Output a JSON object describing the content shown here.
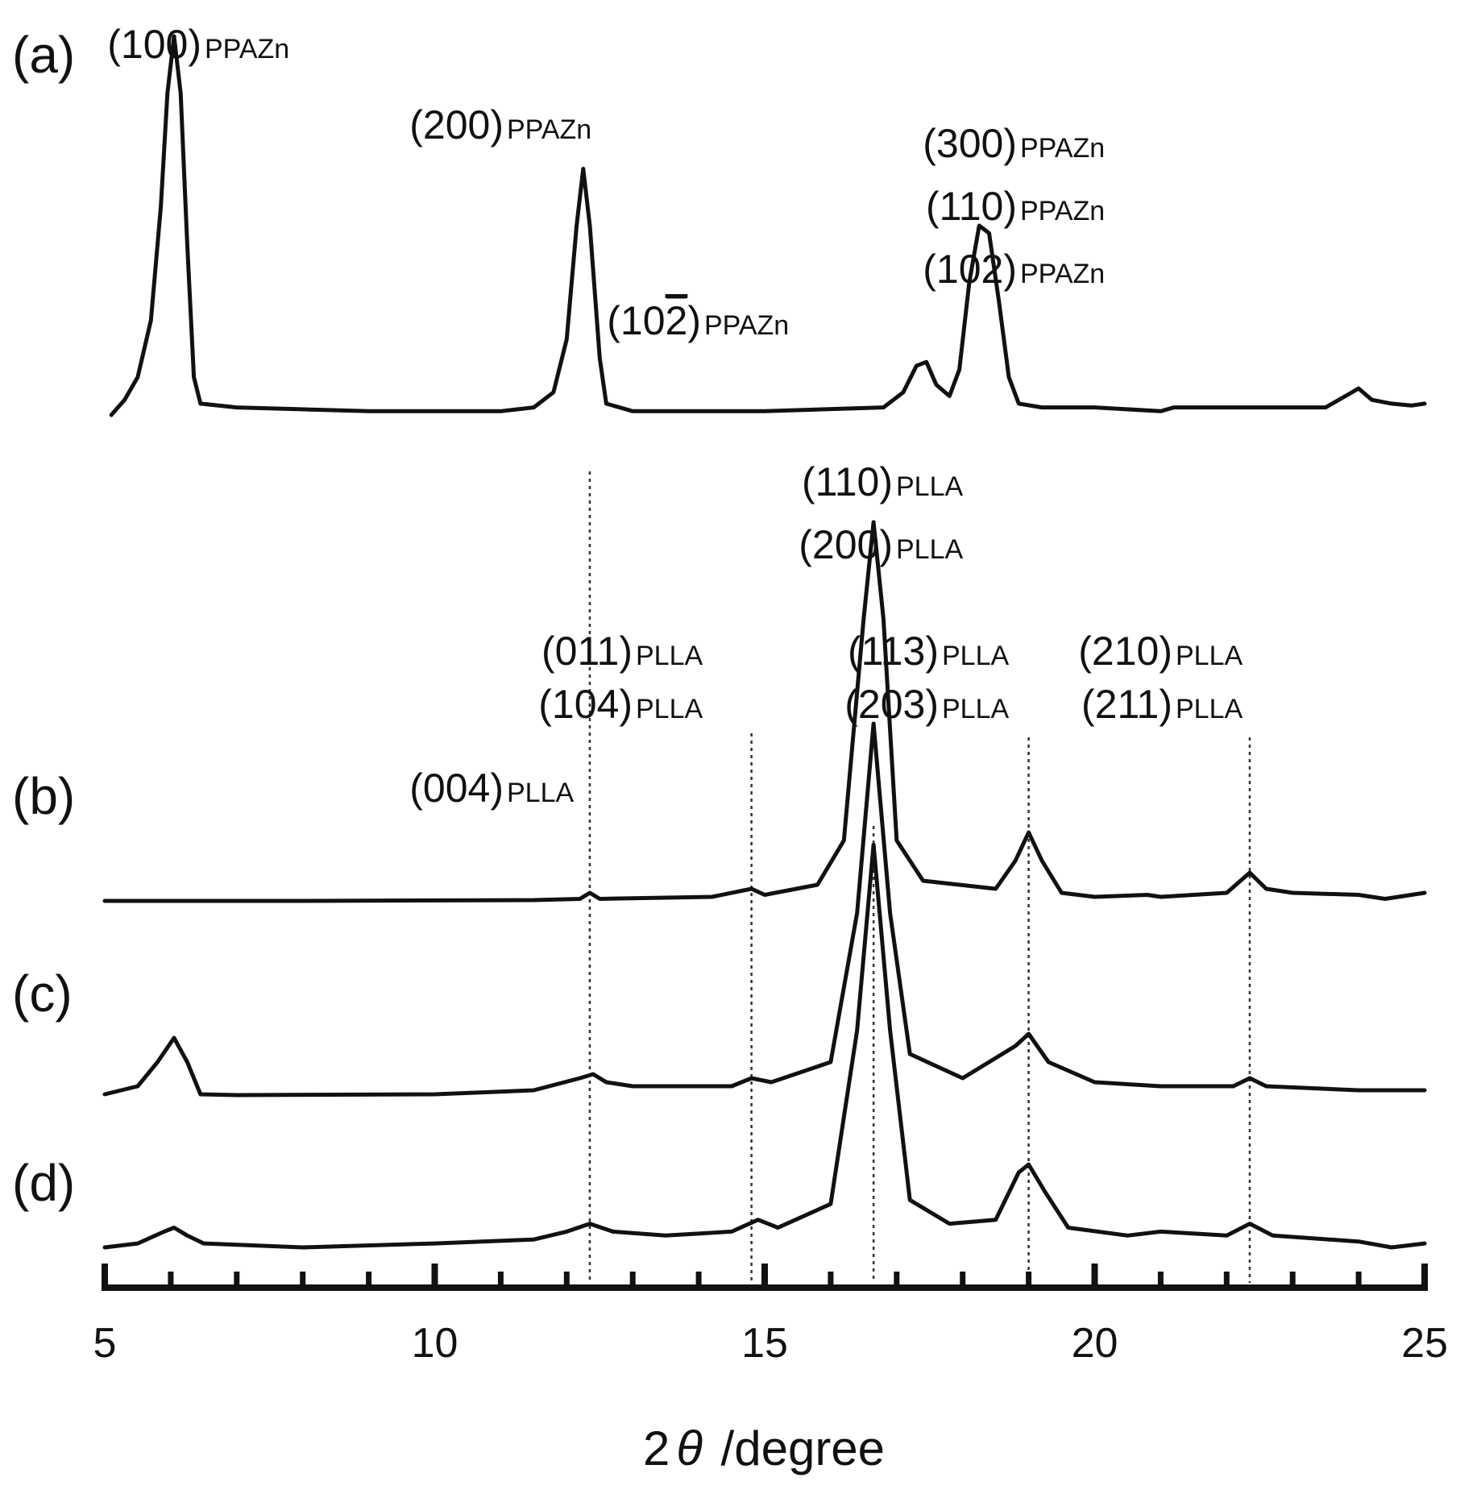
{
  "chart_data": {
    "type": "line",
    "xlabel_prefix": "2",
    "xlabel_symbol": "θ",
    "xlabel_suffix": " /degree",
    "xlim": [
      5,
      25
    ],
    "xticks": [
      5,
      10,
      15,
      20,
      25
    ],
    "minor_tick_step": 1,
    "grid": false,
    "line_color": "#111111",
    "guide_color": "#333333",
    "series": [
      {
        "name": "(a)",
        "points": [
          [
            5.1,
            0.0
          ],
          [
            5.3,
            0.04
          ],
          [
            5.5,
            0.1
          ],
          [
            5.7,
            0.25
          ],
          [
            5.85,
            0.55
          ],
          [
            5.95,
            0.85
          ],
          [
            6.05,
            1.0
          ],
          [
            6.15,
            0.85
          ],
          [
            6.25,
            0.45
          ],
          [
            6.35,
            0.1
          ],
          [
            6.45,
            0.03
          ],
          [
            7,
            0.02
          ],
          [
            9,
            0.01
          ],
          [
            11,
            0.01
          ],
          [
            11.5,
            0.02
          ],
          [
            11.8,
            0.06
          ],
          [
            12.0,
            0.2
          ],
          [
            12.15,
            0.5
          ],
          [
            12.25,
            0.65
          ],
          [
            12.35,
            0.5
          ],
          [
            12.5,
            0.15
          ],
          [
            12.6,
            0.03
          ],
          [
            13,
            0.01
          ],
          [
            15,
            0.01
          ],
          [
            16.8,
            0.02
          ],
          [
            17.1,
            0.06
          ],
          [
            17.3,
            0.13
          ],
          [
            17.45,
            0.14
          ],
          [
            17.6,
            0.08
          ],
          [
            17.8,
            0.05
          ],
          [
            17.95,
            0.12
          ],
          [
            18.1,
            0.35
          ],
          [
            18.25,
            0.5
          ],
          [
            18.4,
            0.48
          ],
          [
            18.55,
            0.3
          ],
          [
            18.7,
            0.1
          ],
          [
            18.85,
            0.03
          ],
          [
            19.2,
            0.02
          ],
          [
            20,
            0.02
          ],
          [
            21,
            0.01
          ],
          [
            21.2,
            0.02
          ],
          [
            22,
            0.02
          ],
          [
            23.5,
            0.02
          ],
          [
            23.8,
            0.05
          ],
          [
            24.0,
            0.07
          ],
          [
            24.2,
            0.04
          ],
          [
            24.5,
            0.03
          ],
          [
            24.8,
            0.025
          ],
          [
            25,
            0.03
          ]
        ]
      },
      {
        "name": "(b)",
        "points": [
          [
            5.0,
            0.0
          ],
          [
            8,
            0.0
          ],
          [
            11.5,
            0.002
          ],
          [
            12.2,
            0.005
          ],
          [
            12.35,
            0.02
          ],
          [
            12.5,
            0.005
          ],
          [
            14.2,
            0.01
          ],
          [
            14.8,
            0.03
          ],
          [
            15.0,
            0.015
          ],
          [
            15.8,
            0.04
          ],
          [
            16.2,
            0.15
          ],
          [
            16.5,
            0.7
          ],
          [
            16.65,
            0.94
          ],
          [
            16.8,
            0.7
          ],
          [
            17.0,
            0.15
          ],
          [
            17.4,
            0.05
          ],
          [
            18.5,
            0.03
          ],
          [
            18.8,
            0.1
          ],
          [
            19.0,
            0.17
          ],
          [
            19.2,
            0.1
          ],
          [
            19.5,
            0.02
          ],
          [
            20,
            0.01
          ],
          [
            20.8,
            0.015
          ],
          [
            21,
            0.01
          ],
          [
            22.0,
            0.02
          ],
          [
            22.35,
            0.07
          ],
          [
            22.6,
            0.03
          ],
          [
            23,
            0.02
          ],
          [
            24.0,
            0.015
          ],
          [
            24.4,
            0.005
          ],
          [
            25,
            0.02
          ]
        ]
      },
      {
        "name": "(c)",
        "points": [
          [
            5.0,
            0.0
          ],
          [
            5.5,
            0.02
          ],
          [
            5.8,
            0.08
          ],
          [
            6.05,
            0.14
          ],
          [
            6.25,
            0.08
          ],
          [
            6.45,
            0.0
          ],
          [
            7,
            -0.002
          ],
          [
            10,
            0.0
          ],
          [
            11.5,
            0.01
          ],
          [
            12.2,
            0.04
          ],
          [
            12.4,
            0.05
          ],
          [
            12.6,
            0.03
          ],
          [
            13,
            0.02
          ],
          [
            14.5,
            0.02
          ],
          [
            14.8,
            0.04
          ],
          [
            15.1,
            0.03
          ],
          [
            16.0,
            0.08
          ],
          [
            16.4,
            0.45
          ],
          [
            16.65,
            0.92
          ],
          [
            16.9,
            0.45
          ],
          [
            17.2,
            0.1
          ],
          [
            18.0,
            0.04
          ],
          [
            18.8,
            0.12
          ],
          [
            19.0,
            0.15
          ],
          [
            19.3,
            0.08
          ],
          [
            20,
            0.03
          ],
          [
            21,
            0.02
          ],
          [
            22.1,
            0.02
          ],
          [
            22.35,
            0.04
          ],
          [
            22.6,
            0.02
          ],
          [
            24,
            0.01
          ],
          [
            25,
            0.01
          ]
        ]
      },
      {
        "name": "(d)",
        "points": [
          [
            5.0,
            0.0
          ],
          [
            5.5,
            0.01
          ],
          [
            5.9,
            0.04
          ],
          [
            6.05,
            0.05
          ],
          [
            6.25,
            0.03
          ],
          [
            6.5,
            0.01
          ],
          [
            8,
            0.0
          ],
          [
            10,
            0.01
          ],
          [
            11.5,
            0.02
          ],
          [
            12.0,
            0.04
          ],
          [
            12.35,
            0.06
          ],
          [
            12.7,
            0.04
          ],
          [
            13.5,
            0.03
          ],
          [
            14.5,
            0.04
          ],
          [
            14.9,
            0.07
          ],
          [
            15.2,
            0.05
          ],
          [
            16.0,
            0.11
          ],
          [
            16.4,
            0.55
          ],
          [
            16.65,
            1.02
          ],
          [
            16.9,
            0.55
          ],
          [
            17.2,
            0.12
          ],
          [
            17.8,
            0.06
          ],
          [
            18.5,
            0.07
          ],
          [
            18.85,
            0.19
          ],
          [
            19.0,
            0.21
          ],
          [
            19.25,
            0.14
          ],
          [
            19.6,
            0.05
          ],
          [
            20.5,
            0.03
          ],
          [
            21.0,
            0.04
          ],
          [
            22.0,
            0.03
          ],
          [
            22.35,
            0.06
          ],
          [
            22.7,
            0.03
          ],
          [
            24.0,
            0.015
          ],
          [
            24.5,
            0.0
          ],
          [
            25,
            0.01
          ]
        ]
      }
    ],
    "guides_x": [
      12.35,
      14.8,
      16.65,
      19.0,
      22.35
    ],
    "annotations": [
      {
        "series": "(a)",
        "lines": [
          {
            "main": "(100)",
            "sub": "PPAZn"
          }
        ]
      },
      {
        "series": "(a)",
        "lines": [
          {
            "main": "(200)",
            "sub": "PPAZn"
          }
        ]
      },
      {
        "series": "(a)",
        "lines": [
          {
            "main": "(10",
            "bar": "2",
            "close": ")",
            "sub": "PPAZn"
          }
        ]
      },
      {
        "series": "(a)",
        "lines": [
          {
            "main": "(300)",
            "sub": "PPAZn"
          },
          {
            "main": "(110)",
            "sub": "PPAZn"
          },
          {
            "main": "(102)",
            "sub": "PPAZn"
          }
        ]
      },
      {
        "series": "PLLA",
        "lines": [
          {
            "main": "(110)",
            "sub": "PLLA"
          },
          {
            "main": "(200)",
            "sub": "PLLA"
          }
        ]
      },
      {
        "series": "PLLA",
        "lines": [
          {
            "main": "(011)",
            "sub": "PLLA"
          },
          {
            "main": "(104)",
            "sub": "PLLA"
          }
        ]
      },
      {
        "series": "PLLA",
        "lines": [
          {
            "main": "(004)",
            "sub": "PLLA"
          }
        ]
      },
      {
        "series": "PLLA",
        "lines": [
          {
            "main": "(113)",
            "sub": "PLLA"
          },
          {
            "main": "(203)",
            "sub": "PLLA"
          }
        ]
      },
      {
        "series": "PLLA",
        "lines": [
          {
            "main": "(210)",
            "sub": "PLLA"
          },
          {
            "main": "(211)",
            "sub": "PLLA"
          }
        ]
      }
    ]
  }
}
